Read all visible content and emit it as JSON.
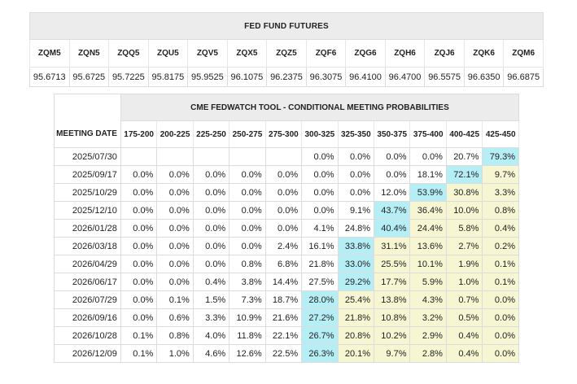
{
  "futures": {
    "title": "FED FUND FUTURES",
    "contracts": [
      {
        "code": "ZQM5",
        "price": "95.6713"
      },
      {
        "code": "ZQN5",
        "price": "95.6725"
      },
      {
        "code": "ZQQ5",
        "price": "95.7225"
      },
      {
        "code": "ZQU5",
        "price": "95.8175"
      },
      {
        "code": "ZQV5",
        "price": "95.9525"
      },
      {
        "code": "ZQX5",
        "price": "96.1075"
      },
      {
        "code": "ZQZ5",
        "price": "96.2375"
      },
      {
        "code": "ZQF6",
        "price": "96.3075"
      },
      {
        "code": "ZQG6",
        "price": "96.4100"
      },
      {
        "code": "ZQH6",
        "price": "96.4700"
      },
      {
        "code": "ZQJ6",
        "price": "96.5575"
      },
      {
        "code": "ZQK6",
        "price": "96.6350"
      },
      {
        "code": "ZQM6",
        "price": "96.6875"
      }
    ]
  },
  "fedwatch": {
    "title": "CME FEDWATCH TOOL - CONDITIONAL MEETING PROBABILITIES",
    "date_header": "MEETING DATE",
    "ranges": [
      "175-200",
      "200-225",
      "225-250",
      "250-275",
      "275-300",
      "300-325",
      "325-350",
      "350-375",
      "375-400",
      "400-425",
      "425-450"
    ],
    "highlight_color": "#b6eef6",
    "secondary_color": "#f6f6d2",
    "rows": [
      {
        "date": "2025/07/30",
        "values": [
          "",
          "",
          "",
          "",
          "",
          "0.0%",
          "0.0%",
          "0.0%",
          "0.0%",
          "20.7%",
          "79.3%"
        ],
        "hi": 10,
        "yl_from": 11
      },
      {
        "date": "2025/09/17",
        "values": [
          "0.0%",
          "0.0%",
          "0.0%",
          "0.0%",
          "0.0%",
          "0.0%",
          "0.0%",
          "0.0%",
          "18.1%",
          "72.1%",
          "9.7%"
        ],
        "hi": 9,
        "yl_from": 10
      },
      {
        "date": "2025/10/29",
        "values": [
          "0.0%",
          "0.0%",
          "0.0%",
          "0.0%",
          "0.0%",
          "0.0%",
          "0.0%",
          "12.0%",
          "53.9%",
          "30.8%",
          "3.3%"
        ],
        "hi": 8,
        "yl_from": 9
      },
      {
        "date": "2025/12/10",
        "values": [
          "0.0%",
          "0.0%",
          "0.0%",
          "0.0%",
          "0.0%",
          "0.0%",
          "9.1%",
          "43.7%",
          "36.4%",
          "10.0%",
          "0.8%"
        ],
        "hi": 7,
        "yl_from": 8
      },
      {
        "date": "2026/01/28",
        "values": [
          "0.0%",
          "0.0%",
          "0.0%",
          "0.0%",
          "0.0%",
          "4.1%",
          "24.8%",
          "40.4%",
          "24.4%",
          "5.8%",
          "0.4%"
        ],
        "hi": 7,
        "yl_from": 8
      },
      {
        "date": "2026/03/18",
        "values": [
          "0.0%",
          "0.0%",
          "0.0%",
          "0.0%",
          "2.4%",
          "16.1%",
          "33.8%",
          "31.1%",
          "13.6%",
          "2.7%",
          "0.2%"
        ],
        "hi": 6,
        "yl_from": 7
      },
      {
        "date": "2026/04/29",
        "values": [
          "0.0%",
          "0.0%",
          "0.0%",
          "0.8%",
          "6.8%",
          "21.8%",
          "33.0%",
          "25.5%",
          "10.1%",
          "1.9%",
          "0.1%"
        ],
        "hi": 6,
        "yl_from": 7
      },
      {
        "date": "2026/06/17",
        "values": [
          "0.0%",
          "0.0%",
          "0.4%",
          "3.8%",
          "14.4%",
          "27.5%",
          "29.2%",
          "17.7%",
          "5.9%",
          "1.0%",
          "0.1%"
        ],
        "hi": 6,
        "yl_from": 7
      },
      {
        "date": "2026/07/29",
        "values": [
          "0.0%",
          "0.1%",
          "1.5%",
          "7.3%",
          "18.7%",
          "28.0%",
          "25.4%",
          "13.8%",
          "4.3%",
          "0.7%",
          "0.0%"
        ],
        "hi": 5,
        "yl_from": 6
      },
      {
        "date": "2026/09/16",
        "values": [
          "0.0%",
          "0.6%",
          "3.3%",
          "10.9%",
          "21.6%",
          "27.2%",
          "21.8%",
          "10.8%",
          "3.2%",
          "0.5%",
          "0.0%"
        ],
        "hi": 5,
        "yl_from": 6
      },
      {
        "date": "2026/10/28",
        "values": [
          "0.1%",
          "0.8%",
          "4.0%",
          "11.8%",
          "22.1%",
          "26.7%",
          "20.8%",
          "10.2%",
          "2.9%",
          "0.4%",
          "0.0%"
        ],
        "hi": 5,
        "yl_from": 6
      },
      {
        "date": "2026/12/09",
        "values": [
          "0.1%",
          "1.0%",
          "4.6%",
          "12.6%",
          "22.5%",
          "26.3%",
          "20.1%",
          "9.7%",
          "2.8%",
          "0.4%",
          "0.0%"
        ],
        "hi": 5,
        "yl_from": 6
      }
    ]
  }
}
